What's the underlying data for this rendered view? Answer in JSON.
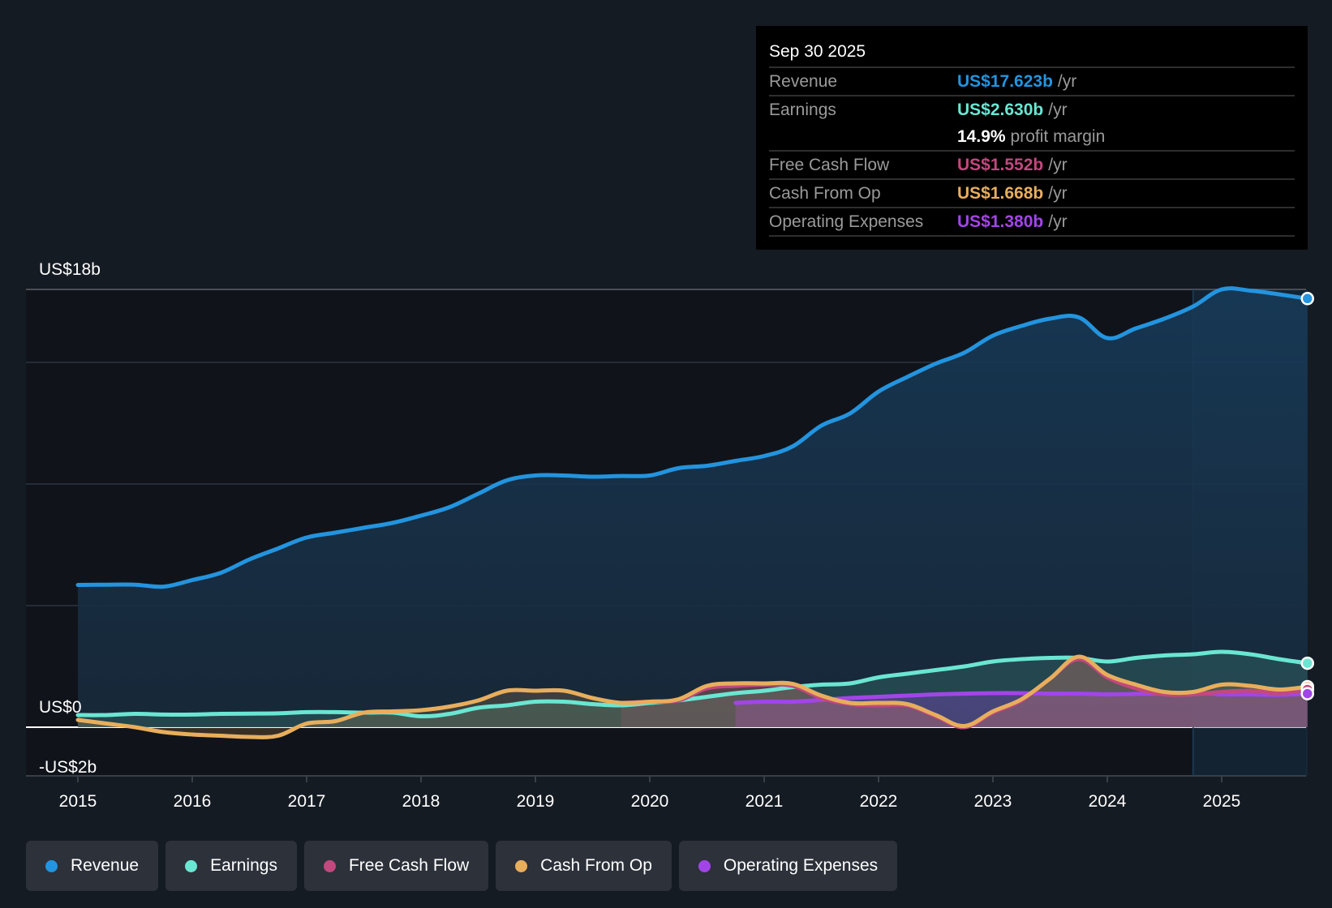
{
  "tooltip": {
    "date": "Sep 30 2025",
    "rows": [
      {
        "label": "Revenue",
        "value": "US$17.623b",
        "unit": "/yr",
        "color": "#2394df"
      },
      {
        "label": "Earnings",
        "value": "US$2.630b",
        "unit": "/yr",
        "color": "#6ae6d2"
      },
      {
        "label": "",
        "margin_value": "14.9%",
        "margin_label": "profit margin"
      },
      {
        "label": "Free Cash Flow",
        "value": "US$1.552b",
        "unit": "/yr",
        "color": "#c2487e"
      },
      {
        "label": "Cash From Op",
        "value": "US$1.668b",
        "unit": "/yr",
        "color": "#e8ae5c"
      },
      {
        "label": "Operating Expenses",
        "value": "US$1.380b",
        "unit": "/yr",
        "color": "#a245e8"
      }
    ]
  },
  "legend": [
    {
      "label": "Revenue",
      "color": "#2394df"
    },
    {
      "label": "Earnings",
      "color": "#6ae6d2"
    },
    {
      "label": "Free Cash Flow",
      "color": "#c2487e"
    },
    {
      "label": "Cash From Op",
      "color": "#e8ae5c"
    },
    {
      "label": "Operating Expenses",
      "color": "#a245e8"
    }
  ],
  "chart_data": {
    "type": "area",
    "title": "",
    "xlabel": "",
    "ylabel": "",
    "y_tick_labels": [
      {
        "value": 18,
        "label": "US$18b"
      },
      {
        "value": 0,
        "label": "US$0"
      },
      {
        "value": -2,
        "label": "-US$2b"
      }
    ],
    "ylim": [
      -2,
      18
    ],
    "xlim": [
      2015,
      2025.75
    ],
    "x_ticks": [
      "2015",
      "2016",
      "2017",
      "2018",
      "2019",
      "2020",
      "2021",
      "2022",
      "2023",
      "2024",
      "2025"
    ],
    "gridlines_at": [
      18,
      15,
      10,
      5,
      0
    ],
    "forecast_region_start": 2024.75,
    "legend_position": "bottom",
    "series": [
      {
        "name": "Revenue",
        "color": "#2394df",
        "x": [
          2015,
          2015.25,
          2015.5,
          2015.75,
          2016,
          2016.25,
          2016.5,
          2016.75,
          2017,
          2017.25,
          2017.5,
          2017.75,
          2018,
          2018.25,
          2018.5,
          2018.75,
          2019,
          2019.25,
          2019.5,
          2019.75,
          2020,
          2020.25,
          2020.5,
          2020.75,
          2021,
          2021.25,
          2021.5,
          2021.75,
          2022,
          2022.25,
          2022.5,
          2022.75,
          2023,
          2023.25,
          2023.5,
          2023.75,
          2024,
          2024.25,
          2024.5,
          2024.75,
          2025,
          2025.25,
          2025.5,
          2025.75
        ],
        "values": [
          5.85,
          5.86,
          5.86,
          5.78,
          6.05,
          6.35,
          6.9,
          7.35,
          7.8,
          8.0,
          8.2,
          8.4,
          8.7,
          9.05,
          9.6,
          10.15,
          10.35,
          10.35,
          10.3,
          10.33,
          10.35,
          10.65,
          10.75,
          10.95,
          11.15,
          11.55,
          12.4,
          12.9,
          13.8,
          14.4,
          14.95,
          15.4,
          16.1,
          16.5,
          16.8,
          16.85,
          16.0,
          16.4,
          16.8,
          17.3,
          18.0,
          17.95,
          17.8,
          17.623
        ]
      },
      {
        "name": "Earnings",
        "color": "#6ae6d2",
        "x": [
          2015,
          2015.25,
          2015.5,
          2015.75,
          2016,
          2016.25,
          2016.5,
          2016.75,
          2017,
          2017.25,
          2017.5,
          2017.75,
          2018,
          2018.25,
          2018.5,
          2018.75,
          2019,
          2019.25,
          2019.5,
          2019.75,
          2020,
          2020.25,
          2020.5,
          2020.75,
          2021,
          2021.25,
          2021.5,
          2021.75,
          2022,
          2022.25,
          2022.5,
          2022.75,
          2023,
          2023.25,
          2023.5,
          2023.75,
          2024,
          2024.25,
          2024.5,
          2024.75,
          2025,
          2025.25,
          2025.5,
          2025.75
        ],
        "values": [
          0.5,
          0.5,
          0.55,
          0.52,
          0.52,
          0.55,
          0.56,
          0.57,
          0.62,
          0.62,
          0.6,
          0.6,
          0.45,
          0.55,
          0.8,
          0.9,
          1.05,
          1.05,
          0.95,
          0.9,
          1.0,
          1.1,
          1.25,
          1.4,
          1.5,
          1.65,
          1.75,
          1.8,
          2.05,
          2.2,
          2.35,
          2.5,
          2.7,
          2.8,
          2.85,
          2.85,
          2.7,
          2.85,
          2.95,
          3.0,
          3.1,
          3.0,
          2.8,
          2.63
        ]
      },
      {
        "name": "Free Cash Flow",
        "color": "#c2487e",
        "x": [
          2019.75,
          2020,
          2020.25,
          2020.5,
          2020.75,
          2021,
          2021.25,
          2021.5,
          2021.75,
          2022,
          2022.25,
          2022.5,
          2022.75,
          2023,
          2023.25,
          2023.5,
          2023.75,
          2024,
          2024.25,
          2024.5,
          2024.75,
          2025,
          2025.25,
          2025.5,
          2025.75
        ],
        "values": [
          1.0,
          1.05,
          1.1,
          1.6,
          1.7,
          1.75,
          1.7,
          1.2,
          0.95,
          0.9,
          0.9,
          0.45,
          0.0,
          0.6,
          1.1,
          2.0,
          2.8,
          2.05,
          1.6,
          1.35,
          1.35,
          1.45,
          1.5,
          1.4,
          1.552
        ]
      },
      {
        "name": "Cash From Op",
        "color": "#e8ae5c",
        "x": [
          2015,
          2015.25,
          2015.5,
          2015.75,
          2016,
          2016.25,
          2016.5,
          2016.75,
          2017,
          2017.25,
          2017.5,
          2017.75,
          2018,
          2018.25,
          2018.5,
          2018.75,
          2019,
          2019.25,
          2019.5,
          2019.75,
          2020,
          2020.25,
          2020.5,
          2020.75,
          2021,
          2021.25,
          2021.5,
          2021.75,
          2022,
          2022.25,
          2022.5,
          2022.75,
          2023,
          2023.25,
          2023.5,
          2023.75,
          2024,
          2024.25,
          2024.5,
          2024.75,
          2025,
          2025.25,
          2025.5,
          2025.75
        ],
        "values": [
          0.3,
          0.15,
          0.0,
          -0.2,
          -0.3,
          -0.35,
          -0.4,
          -0.35,
          0.15,
          0.25,
          0.6,
          0.65,
          0.7,
          0.85,
          1.1,
          1.5,
          1.5,
          1.5,
          1.2,
          1.0,
          1.05,
          1.15,
          1.7,
          1.8,
          1.8,
          1.78,
          1.3,
          1.0,
          1.0,
          0.95,
          0.5,
          0.05,
          0.65,
          1.15,
          2.0,
          2.9,
          2.15,
          1.75,
          1.45,
          1.45,
          1.75,
          1.7,
          1.55,
          1.668
        ]
      },
      {
        "name": "Operating Expenses",
        "color": "#a245e8",
        "x": [
          2020.75,
          2021,
          2021.25,
          2021.5,
          2021.75,
          2022,
          2022.25,
          2022.5,
          2022.75,
          2023,
          2023.25,
          2023.5,
          2023.75,
          2024,
          2024.25,
          2024.5,
          2024.75,
          2025,
          2025.25,
          2025.5,
          2025.75
        ],
        "values": [
          1.0,
          1.05,
          1.05,
          1.12,
          1.2,
          1.25,
          1.3,
          1.35,
          1.38,
          1.4,
          1.4,
          1.38,
          1.38,
          1.35,
          1.37,
          1.38,
          1.42,
          1.35,
          1.35,
          1.33,
          1.38
        ]
      }
    ]
  }
}
